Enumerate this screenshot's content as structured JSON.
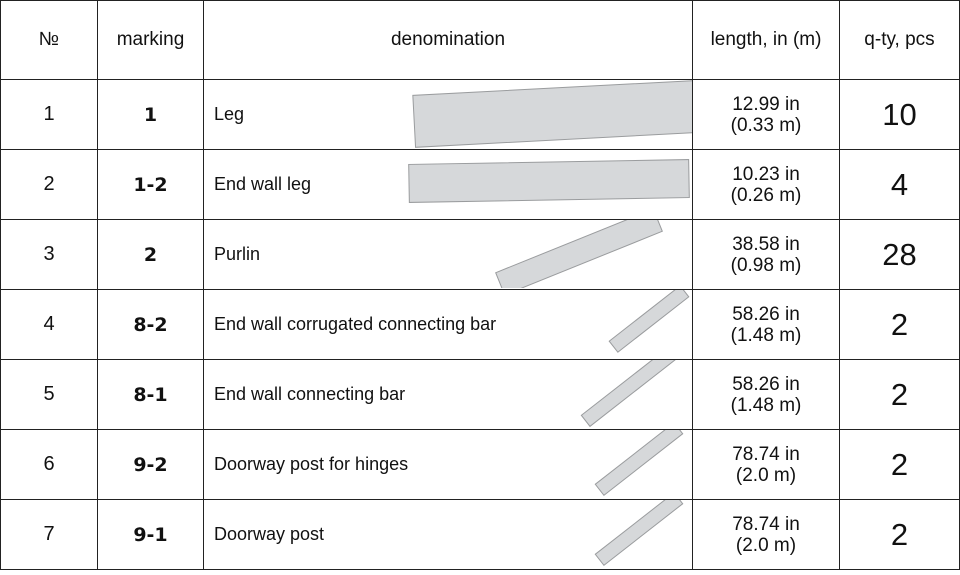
{
  "table": {
    "header": [
      "№",
      "marking",
      "denomination",
      "length, in (m)",
      "q-ty, pcs"
    ],
    "rows": [
      [
        "1",
        "1",
        "Leg",
        "12.99 in",
        "(0.33 m)",
        "10"
      ],
      [
        "2",
        "1-2",
        "End wall leg",
        "10.23 in",
        "(0.26 m)",
        "4"
      ],
      [
        "3",
        "2",
        "Purlin",
        "38.58 in",
        "(0.98 m)",
        "28"
      ],
      [
        "4",
        "8-2",
        "End wall corrugated connecting bar",
        "58.26 in",
        "(1.48 m)",
        "2"
      ],
      [
        "5",
        "8-1",
        "End wall connecting bar",
        "58.26 in",
        "(1.48 m)",
        "2"
      ],
      [
        "6",
        "9-2",
        "Doorway post for hinges",
        "78.74 in",
        "(2.0 m)",
        "2"
      ],
      [
        "7",
        "9-1",
        "Doorway post",
        "78.74 in",
        "(2.0 m)",
        "2"
      ]
    ]
  }
}
